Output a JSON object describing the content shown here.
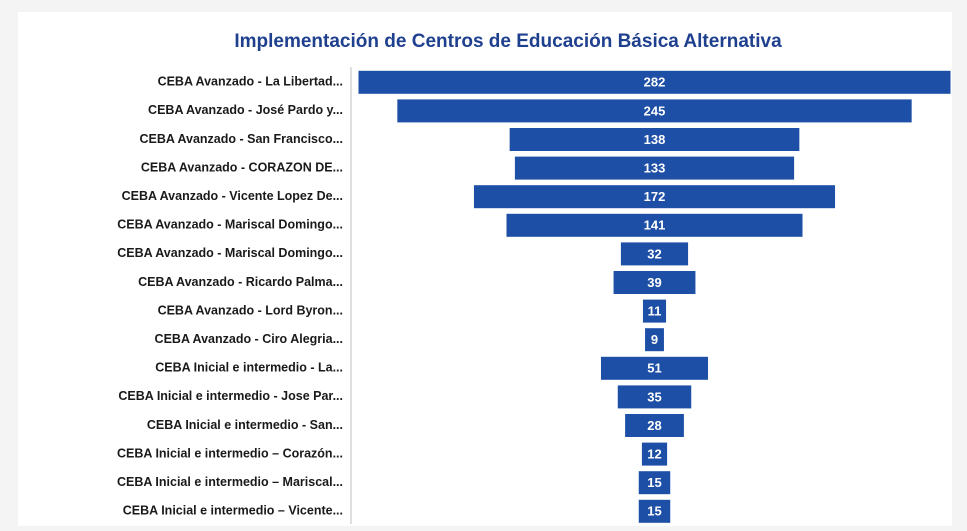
{
  "chart_data": {
    "type": "funnel",
    "title": "Implementación de Centros de Educación Básica Alternativa",
    "categories": [
      "CEBA Avanzado - La Libertad...",
      "CEBA Avanzado - José Pardo y...",
      "CEBA Avanzado - San Francisco...",
      "CEBA Avanzado - CORAZON DE...",
      "CEBA Avanzado - Vicente Lopez De...",
      "CEBA Avanzado - Mariscal Domingo...",
      "CEBA Avanzado - Mariscal Domingo...",
      "CEBA Avanzado - Ricardo Palma...",
      "CEBA Avanzado - Lord Byron...",
      "CEBA Avanzado - Ciro Alegria...",
      "CEBA Inicial e intermedio - La...",
      "CEBA Inicial e intermedio - Jose Par...",
      "CEBA Inicial e intermedio - San...",
      "CEBA Inicial e intermedio – Corazón...",
      "CEBA Inicial e intermedio – Mariscal...",
      "CEBA Inicial e intermedio – Vicente..."
    ],
    "values": [
      282,
      245,
      138,
      133,
      172,
      141,
      32,
      39,
      11,
      9,
      51,
      35,
      28,
      12,
      15,
      15
    ],
    "color": "#1e4fa6"
  }
}
